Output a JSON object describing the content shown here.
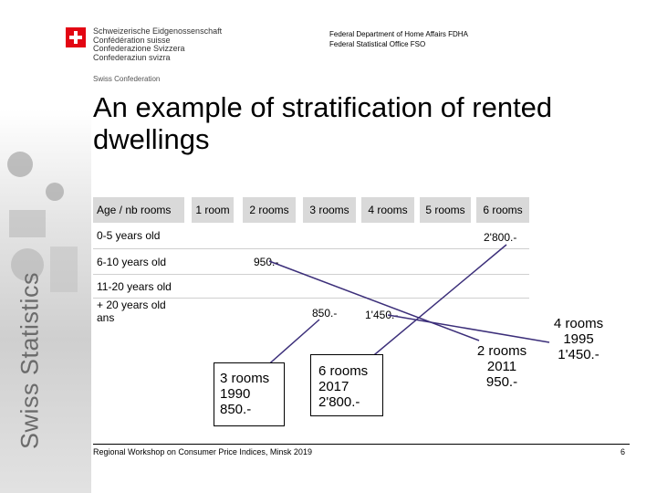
{
  "header": {
    "confederation": [
      "Schweizerische Eidgenossenschaft",
      "Confédération suisse",
      "Confederazione Svizzera",
      "Confederaziun svizra"
    ],
    "confederation_en": "Swiss Confederation",
    "department": "Federal Department of Home Affairs FDHA",
    "office": "Federal Statistical Office FSO"
  },
  "side_label": "Swiss Statistics",
  "title": "An example of stratification of rented dwellings",
  "table": {
    "columns": [
      "Age / nb rooms",
      "1 room",
      "2 rooms",
      "3 rooms",
      "4 rooms",
      "5 rooms",
      "6 rooms"
    ],
    "rows": [
      "0-5 years old",
      "6-10 years old",
      "11-20 years old",
      "+ 20 years old ans"
    ],
    "cells": {
      "r0_6rooms": "2'800.-",
      "r1_2rooms": "950.-",
      "r3_3rooms": "850.-",
      "r3_4rooms": "1'450.-"
    }
  },
  "notes": [
    {
      "lines": [
        "3 rooms",
        "1990",
        "850.-"
      ]
    },
    {
      "lines": [
        "6 rooms",
        "2017",
        "2'800.-"
      ]
    },
    {
      "lines": [
        "2 rooms",
        "2011",
        "950.-"
      ]
    },
    {
      "lines": [
        "4 rooms",
        "1995",
        "1'450.-"
      ]
    }
  ],
  "footer": {
    "text": "Regional Workshop on Consumer Price Indices, Minsk 2019",
    "page": "6"
  },
  "colors": {
    "flag_red": "#e30613",
    "header_gray": "#d9d9d9",
    "arrow": "#3c2f7a"
  }
}
